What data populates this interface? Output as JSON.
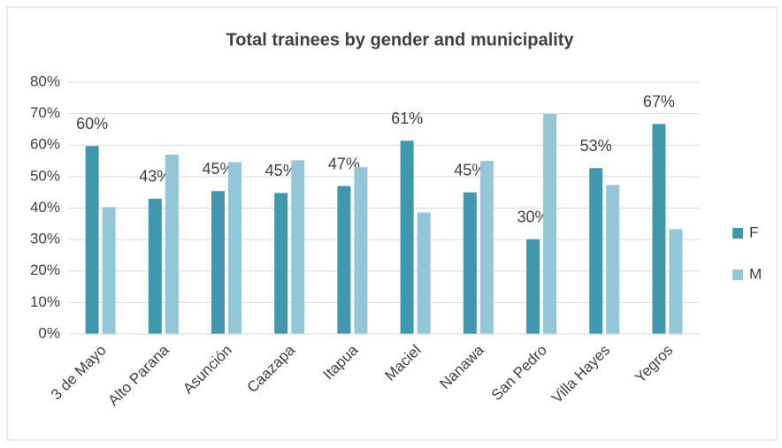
{
  "chart_data": {
    "type": "bar",
    "title": "Total trainees by gender and municipality",
    "categories": [
      "3 de Mayo",
      "Alto Parana",
      "Asunción",
      "Caazapa",
      "Itapua",
      "Maciel",
      "Nanawa",
      "San Pedro",
      "Villa Hayes",
      "Yegros"
    ],
    "series": [
      {
        "name": "F",
        "color": "#3f98ad",
        "values": [
          59.7,
          43,
          45.4,
          44.8,
          47,
          61.4,
          45,
          30.1,
          52.7,
          66.7
        ],
        "value_labels": [
          "60%",
          "43%",
          "45%",
          "45%",
          "47%",
          "61%",
          "45%",
          "30%",
          "53%",
          "67%"
        ]
      },
      {
        "name": "M",
        "color": "#93c6d7",
        "values": [
          40.3,
          57,
          54.6,
          55.2,
          53,
          38.6,
          55,
          69.9,
          47.3,
          33.3
        ]
      }
    ],
    "ylim": [
      0,
      80
    ],
    "yticks": [
      {
        "value": 0,
        "label": "0%"
      },
      {
        "value": 10,
        "label": "10%"
      },
      {
        "value": 20,
        "label": "20%"
      },
      {
        "value": 30,
        "label": "30%"
      },
      {
        "value": 40,
        "label": "40%"
      },
      {
        "value": 50,
        "label": "50%"
      },
      {
        "value": 60,
        "label": "60%"
      },
      {
        "value": 70,
        "label": "70%"
      },
      {
        "value": 80,
        "label": "80%"
      }
    ],
    "grid": true,
    "legend": "right"
  }
}
